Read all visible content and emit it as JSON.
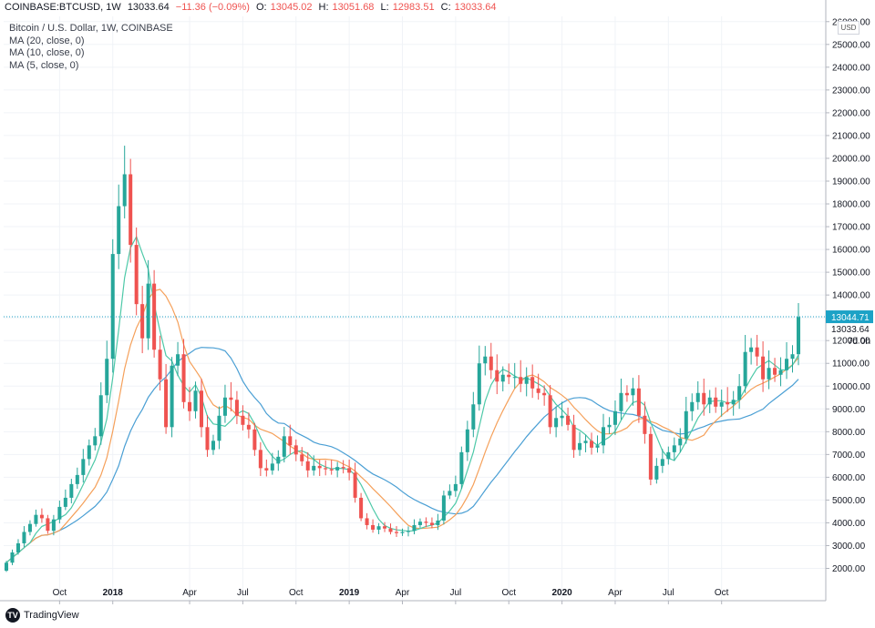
{
  "header": {
    "symbol": "COINBASE:BTCUSD, 1W",
    "last": "13033.64",
    "change": "−11.36 (−0.09%)",
    "o_label": "O:",
    "o_value": "13045.02",
    "h_label": "H:",
    "h_value": "13051.68",
    "l_label": "L:",
    "l_value": "12983.51",
    "c_label": "C:",
    "c_value": "13033.64"
  },
  "legend": {
    "title": "Bitcoin / U.S. Dollar, 1W, COINBASE",
    "ma1": "MA (20, close, 0)",
    "ma2": "MA (10, close, 0)",
    "ma3": "MA (5, close, 0)"
  },
  "currency": "USD",
  "branding": {
    "name": "TradingView",
    "logo": "TV"
  },
  "colors": {
    "up": "#26a69a",
    "down": "#ef5350",
    "ma20": "#4a9fd4",
    "ma10": "#f5a05a",
    "ma5": "#4ec9a8",
    "last_label_bg": "#1ca2c6",
    "price_line": "#1ca2c6",
    "grid": "#f0f3f7",
    "axis_text": "#131722"
  },
  "chart_data": {
    "type": "candlestick",
    "title": "Bitcoin / U.S. Dollar, 1W, COINBASE",
    "interval": "1W",
    "y_range": [
      1500,
      26000
    ],
    "y_ticks": [
      2000,
      3000,
      4000,
      5000,
      6000,
      7000,
      8000,
      9000,
      10000,
      11000,
      12000,
      13000,
      14000,
      15000,
      16000,
      17000,
      18000,
      19000,
      20000,
      21000,
      22000,
      23000,
      24000,
      25000,
      26000
    ],
    "y_tick_labels": [
      "2000.00",
      "3000.00",
      "4000.00",
      "5000.00",
      "6000.00",
      "7000.00",
      "8000.00",
      "9000.00",
      "10000.00",
      "11000.00",
      "12000.00",
      "13000.00",
      "14000.00",
      "15000.00",
      "16000.00",
      "17000.00",
      "18000.00",
      "19000.00",
      "20000.00",
      "21000.00",
      "22000.00",
      "23000.00",
      "24000.00",
      "25000.00",
      "26000.00"
    ],
    "x_tick_labels": [
      {
        "label": "Oct",
        "week": 9
      },
      {
        "label": "2018",
        "week": 18
      },
      {
        "label": "Apr",
        "week": 31
      },
      {
        "label": "Jul",
        "week": 40
      },
      {
        "label": "Oct",
        "week": 49
      },
      {
        "label": "2019",
        "week": 58
      },
      {
        "label": "Apr",
        "week": 67
      },
      {
        "label": "Jul",
        "week": 76
      },
      {
        "label": "Oct",
        "week": 85
      },
      {
        "label": "2020",
        "week": 94
      },
      {
        "label": "Apr",
        "week": 103
      },
      {
        "label": "Jul",
        "week": 112
      },
      {
        "label": "Oct",
        "week": 121
      }
    ],
    "price_line": {
      "value": 13044.71,
      "label": "13044.71"
    },
    "last_price_label": "13033.64",
    "countdown_label": "7d 0h",
    "weekly_close": [
      2250,
      2700,
      3100,
      3600,
      3950,
      4350,
      4200,
      3650,
      4150,
      4700,
      5100,
      5700,
      6100,
      6800,
      7400,
      7800,
      9600,
      11200,
      15800,
      17900,
      19300,
      16200,
      13600,
      12100,
      14500,
      11600,
      10300,
      8200,
      10900,
      11400,
      9300,
      8900,
      9800,
      8200,
      7200,
      7600,
      8700,
      9500,
      9400,
      8700,
      8300,
      8100,
      7200,
      6400,
      6300,
      6600,
      6900,
      7800,
      7400,
      7000,
      6700,
      6300,
      6500,
      6400,
      6350,
      6300,
      6450,
      6400,
      6200,
      5100,
      4200,
      3900,
      3700,
      3850,
      3750,
      3600,
      3550,
      3600,
      3650,
      3900,
      4050,
      4000,
      3900,
      4100,
      5200,
      5400,
      5700,
      7100,
      8100,
      9200,
      11000,
      11300,
      10700,
      10200,
      10500,
      10400,
      10400,
      10100,
      10400,
      9900,
      9700,
      9600,
      8200,
      8600,
      8700,
      8300,
      7200,
      7500,
      7600,
      7300,
      7400,
      8200,
      8300,
      8900,
      9700,
      9600,
      9900,
      8700,
      7900,
      5900,
      6500,
      6800,
      7100,
      7400,
      7700,
      8900,
      9300,
      9700,
      9200,
      9500,
      9100,
      9300,
      9200,
      9400,
      10000,
      11500,
      11700,
      11300,
      10300,
      10800,
      10500,
      10700,
      11200,
      11400,
      13033
    ]
  }
}
